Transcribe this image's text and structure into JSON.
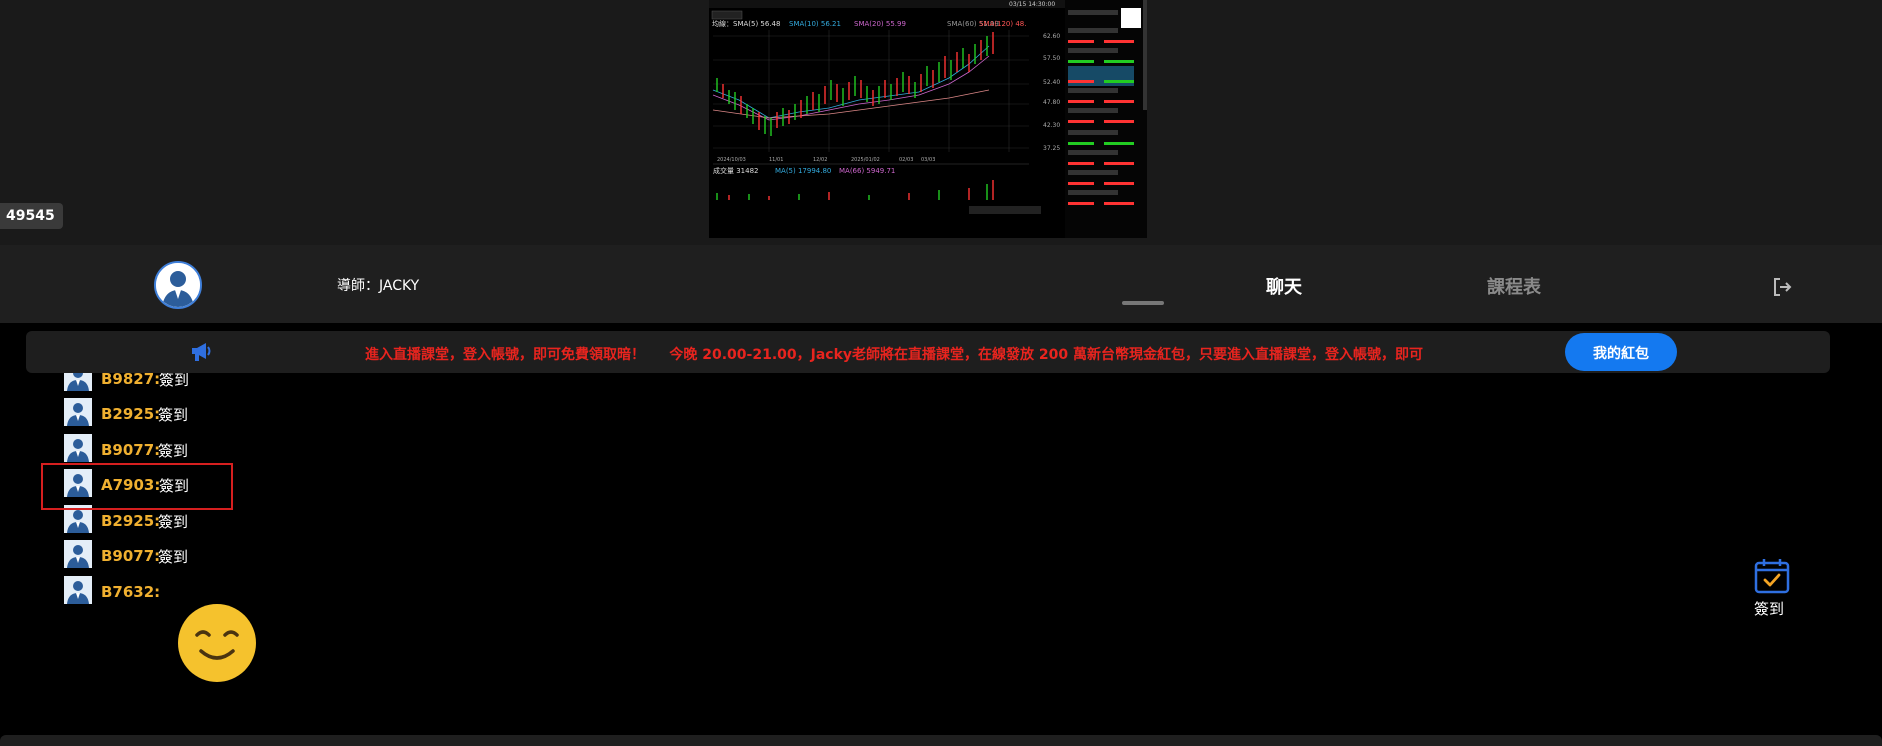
{
  "stream": {
    "viewer_count": "49545",
    "chart": {
      "header_left": "均線：SMA(5) 56.48",
      "sma10": "SMA(10) 56.21",
      "sma20": "SMA(20) 55.99",
      "sma60": "SMA(60) 51.99",
      "sma120": "SMA(120) 48.",
      "price_ticks": [
        "62.60",
        "57.50",
        "52.40",
        "47.80",
        "42.30",
        "37.25"
      ],
      "volume_label": "成交量 31482",
      "volume_ma": "MA(5) 17994.80",
      "volume_ma2": "MA(66) 5949.71",
      "date_ticks": [
        "2024/10/03",
        "11/01",
        "12/02",
        "2025/01/02",
        "02/03",
        "03/03"
      ],
      "timestamp": "03/15 14:30:00"
    }
  },
  "header": {
    "teacher_label": "導師：JACKY",
    "tabs": [
      {
        "label": "聊天"
      },
      {
        "label": "課程表"
      }
    ]
  },
  "announcement": {
    "text": "進入直播課堂，登入帳號，即可免費領取暗！     今晚 20.00-21.00，Jacky老師將在直播課堂，在線發放 200 萬新台幣現金紅包，只要進入直播課堂，登入帳號，即可",
    "button_label": "我的紅包"
  },
  "messages": [
    {
      "user": "B9827:",
      "text": "簽到"
    },
    {
      "user": "B2925:",
      "text": "簽到"
    },
    {
      "user": "B9077:",
      "text": "簽到"
    },
    {
      "user": "A7903:",
      "text": "簽到"
    },
    {
      "user": "B2925:",
      "text": "簽到"
    },
    {
      "user": "B9077:",
      "text": "簽到"
    },
    {
      "user": "B7632:",
      "text": ""
    }
  ],
  "checkin": {
    "label": "簽到"
  },
  "colors": {
    "accent": "#1479f0",
    "username": "#f0b030",
    "announcement_text": "#e8241e",
    "highlight_border": "#d61f1f"
  }
}
